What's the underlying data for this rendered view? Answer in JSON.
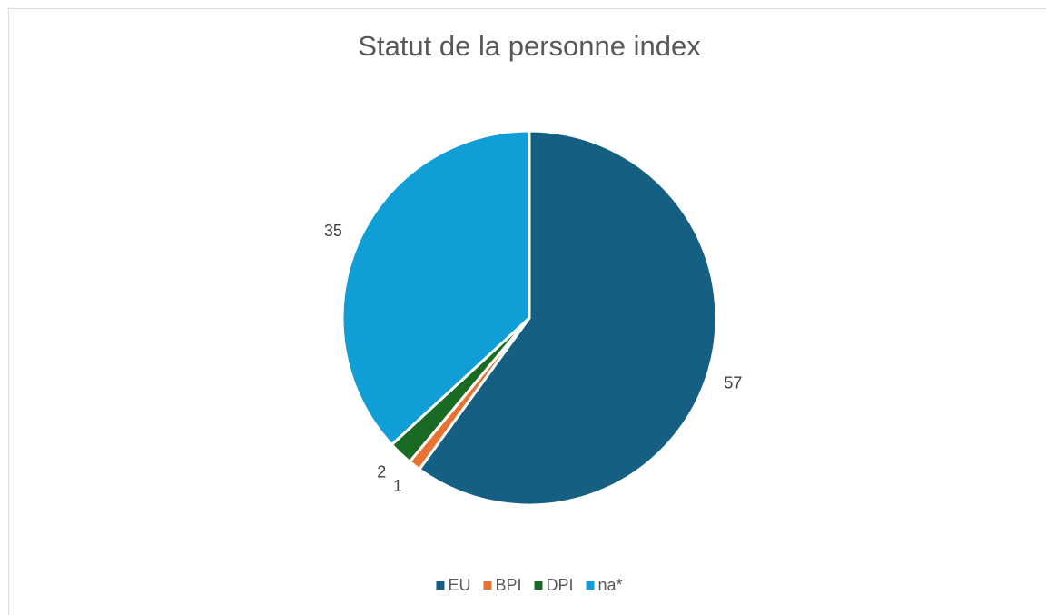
{
  "chart_data": {
    "type": "pie",
    "title": "Statut de la personne index",
    "categories": [
      "EU",
      "BPI",
      "DPI",
      "na*"
    ],
    "values": [
      57,
      1,
      2,
      35
    ],
    "colors": [
      "#156082",
      "#e97132",
      "#196b24",
      "#0f9ed5"
    ],
    "legend": "bottom"
  }
}
